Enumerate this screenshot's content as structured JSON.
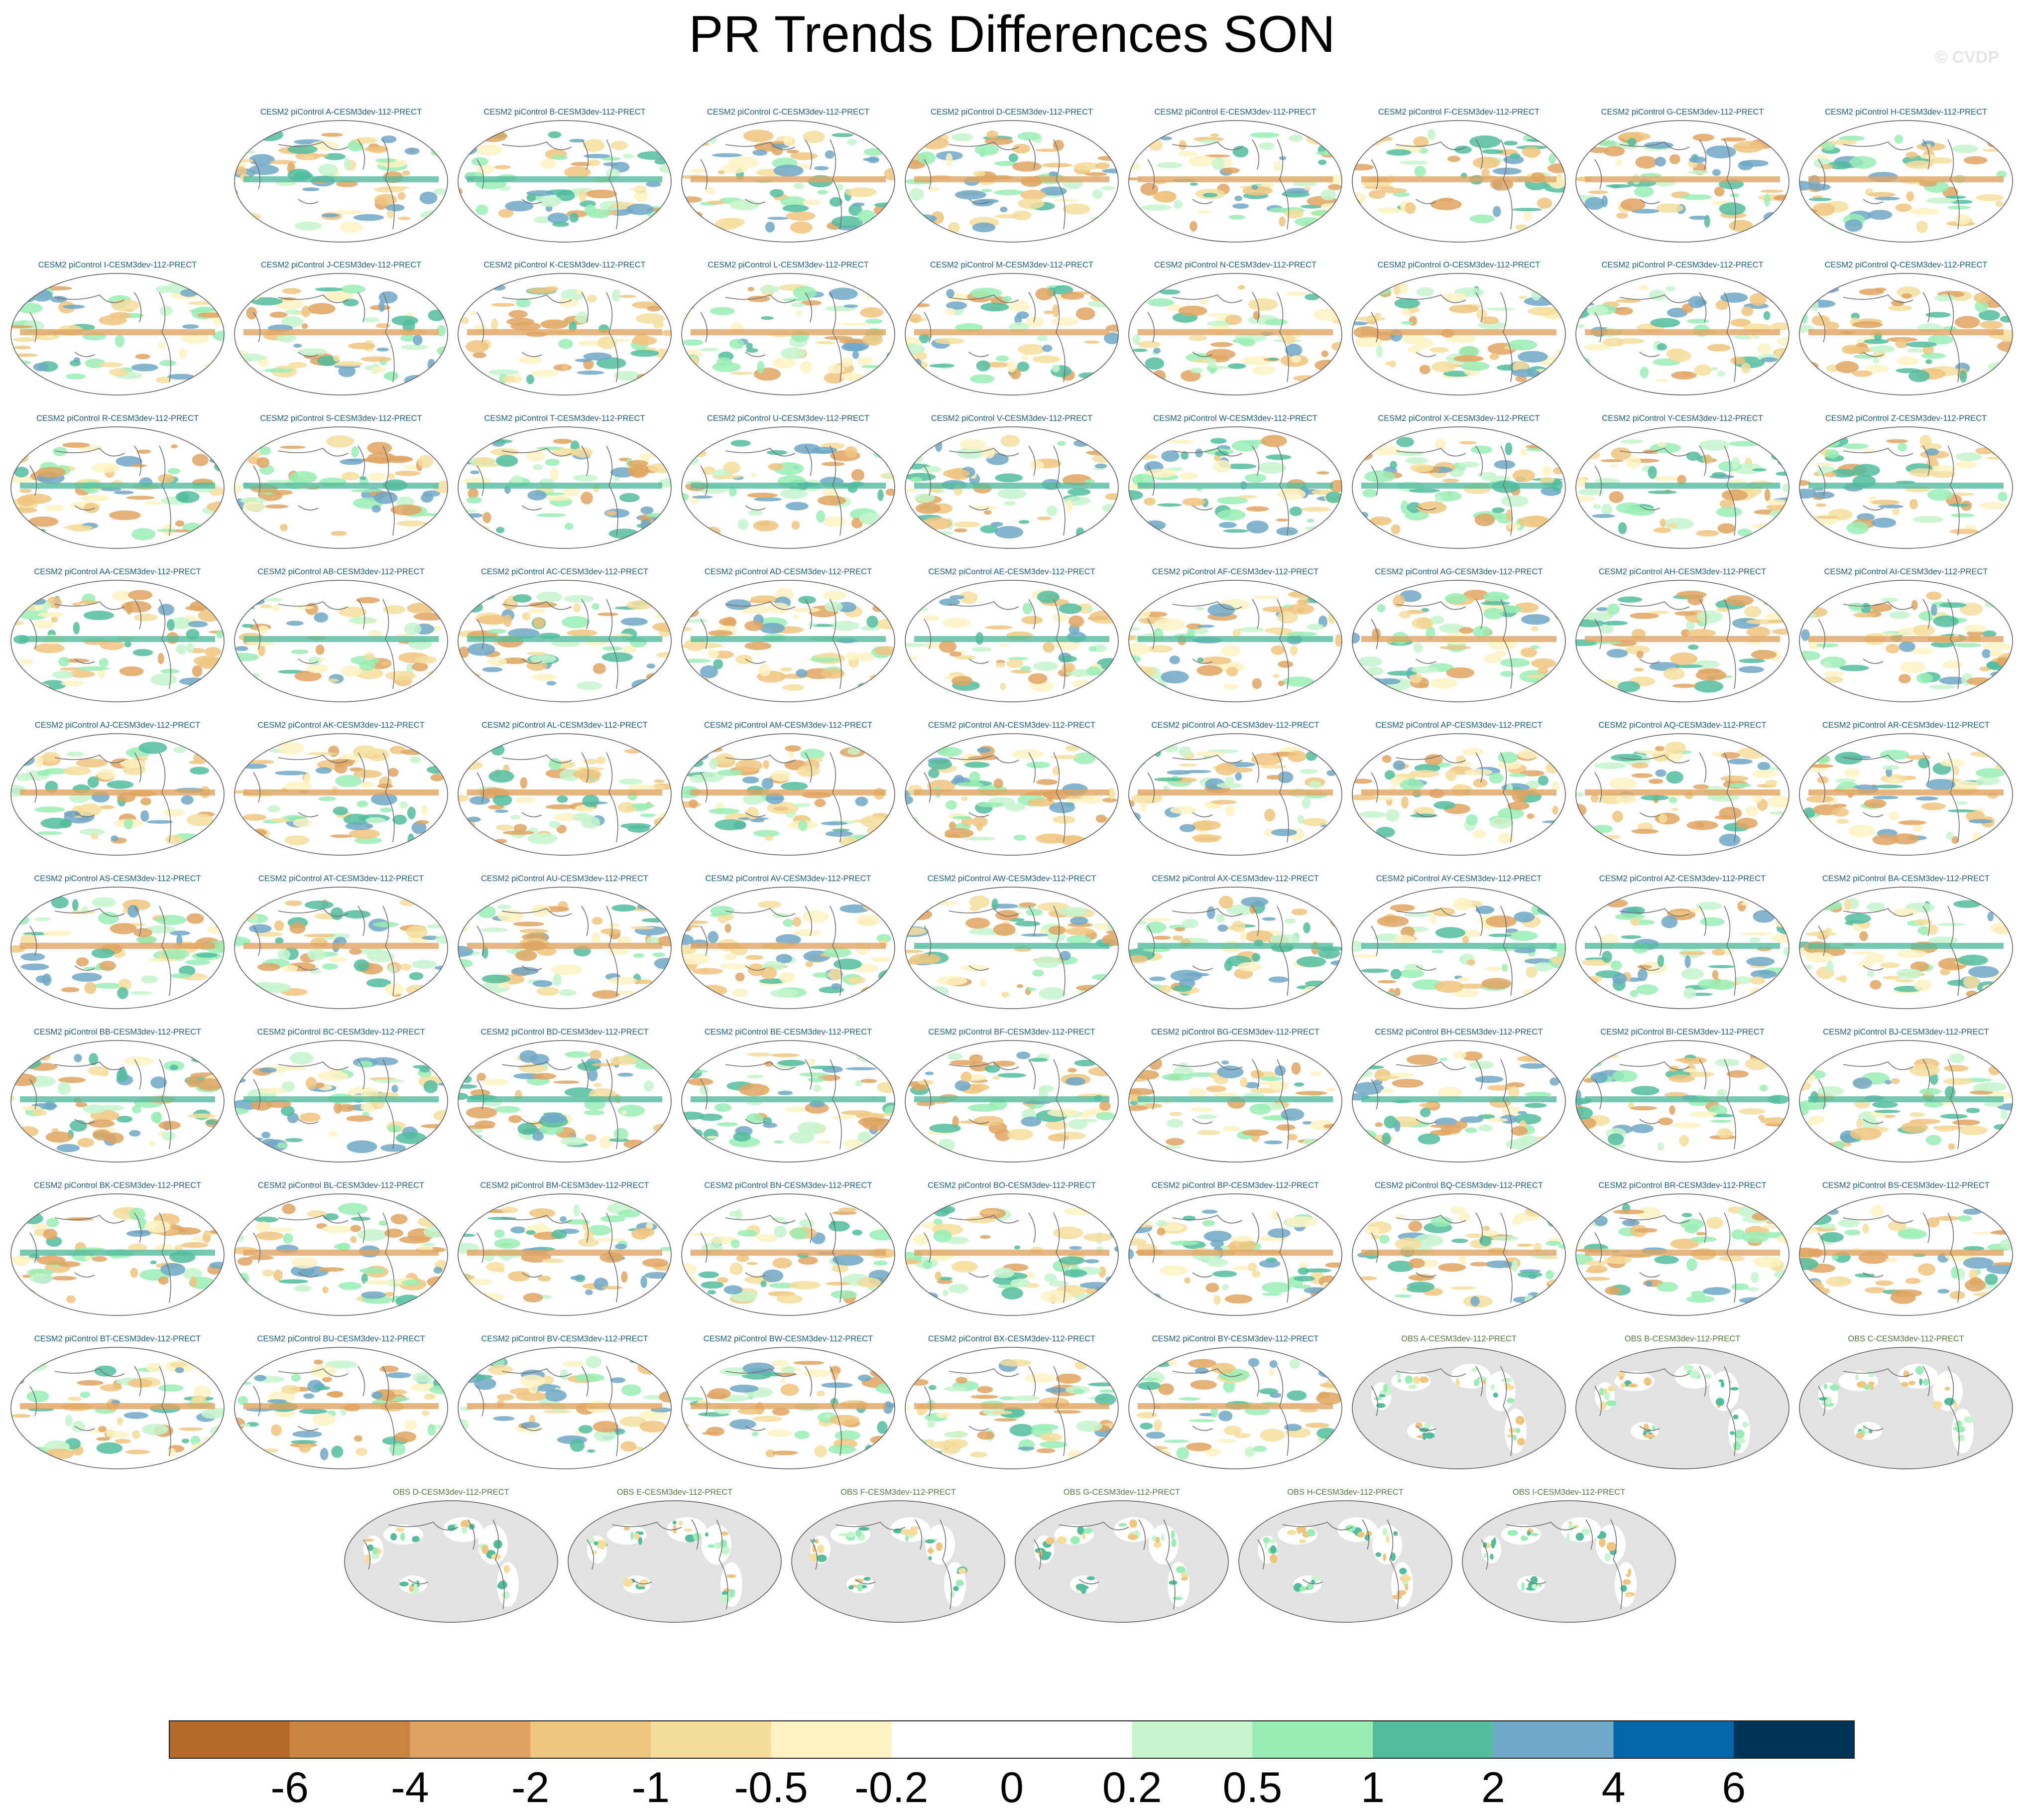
{
  "title": "PR Trends Differences SON",
  "watermark": "© CVDP",
  "colors": {
    "land_obs_mask": "#e2e2e2",
    "coastline": "#6f6f6f",
    "model_title": "#1f5f80",
    "obs_title": "#5a7a45"
  },
  "chart_data": {
    "type": "heatmap",
    "title": "PR Trends Differences SON",
    "description_kind": "grid of global map panels with shared discrete colorbar",
    "colorbar": {
      "levels": [
        "-6",
        "-4",
        "-2",
        "-1",
        "-0.5",
        "-0.2",
        "0",
        "0.2",
        "0.5",
        "1",
        "2",
        "4",
        "6"
      ],
      "colors": [
        "#b5692a",
        "#ca843f",
        "#dfa461",
        "#efc47f",
        "#f5dd9c",
        "#fdf2c2",
        "#ffffff",
        "#ffffff",
        "#c6f5cd",
        "#99edb4",
        "#52bc9d",
        "#6fa7c6",
        "#0367a8",
        "#023459"
      ],
      "placement": "bottom"
    },
    "panels": [
      {
        "title": "CESM2 piControl A-CESM3dev-112-PRECT",
        "kind": "model"
      },
      {
        "title": "CESM2 piControl B-CESM3dev-112-PRECT",
        "kind": "model"
      },
      {
        "title": "CESM2 piControl C-CESM3dev-112-PRECT",
        "kind": "model"
      },
      {
        "title": "CESM2 piControl D-CESM3dev-112-PRECT",
        "kind": "model"
      },
      {
        "title": "CESM2 piControl E-CESM3dev-112-PRECT",
        "kind": "model"
      },
      {
        "title": "CESM2 piControl F-CESM3dev-112-PRECT",
        "kind": "model"
      },
      {
        "title": "CESM2 piControl G-CESM3dev-112-PRECT",
        "kind": "model"
      },
      {
        "title": "CESM2 piControl H-CESM3dev-112-PRECT",
        "kind": "model"
      },
      {
        "title": "CESM2 piControl I-CESM3dev-112-PRECT",
        "kind": "model"
      },
      {
        "title": "CESM2 piControl J-CESM3dev-112-PRECT",
        "kind": "model"
      },
      {
        "title": "CESM2 piControl K-CESM3dev-112-PRECT",
        "kind": "model"
      },
      {
        "title": "CESM2 piControl L-CESM3dev-112-PRECT",
        "kind": "model"
      },
      {
        "title": "CESM2 piControl M-CESM3dev-112-PRECT",
        "kind": "model"
      },
      {
        "title": "CESM2 piControl N-CESM3dev-112-PRECT",
        "kind": "model"
      },
      {
        "title": "CESM2 piControl O-CESM3dev-112-PRECT",
        "kind": "model"
      },
      {
        "title": "CESM2 piControl P-CESM3dev-112-PRECT",
        "kind": "model"
      },
      {
        "title": "CESM2 piControl Q-CESM3dev-112-PRECT",
        "kind": "model"
      },
      {
        "title": "CESM2 piControl R-CESM3dev-112-PRECT",
        "kind": "model"
      },
      {
        "title": "CESM2 piControl S-CESM3dev-112-PRECT",
        "kind": "model"
      },
      {
        "title": "CESM2 piControl T-CESM3dev-112-PRECT",
        "kind": "model"
      },
      {
        "title": "CESM2 piControl U-CESM3dev-112-PRECT",
        "kind": "model"
      },
      {
        "title": "CESM2 piControl V-CESM3dev-112-PRECT",
        "kind": "model"
      },
      {
        "title": "CESM2 piControl W-CESM3dev-112-PRECT",
        "kind": "model"
      },
      {
        "title": "CESM2 piControl X-CESM3dev-112-PRECT",
        "kind": "model"
      },
      {
        "title": "CESM2 piControl Y-CESM3dev-112-PRECT",
        "kind": "model"
      },
      {
        "title": "CESM2 piControl Z-CESM3dev-112-PRECT",
        "kind": "model"
      },
      {
        "title": "CESM2 piControl AA-CESM3dev-112-PRECT",
        "kind": "model"
      },
      {
        "title": "CESM2 piControl AB-CESM3dev-112-PRECT",
        "kind": "model"
      },
      {
        "title": "CESM2 piControl AC-CESM3dev-112-PRECT",
        "kind": "model"
      },
      {
        "title": "CESM2 piControl AD-CESM3dev-112-PRECT",
        "kind": "model"
      },
      {
        "title": "CESM2 piControl AE-CESM3dev-112-PRECT",
        "kind": "model"
      },
      {
        "title": "CESM2 piControl AF-CESM3dev-112-PRECT",
        "kind": "model"
      },
      {
        "title": "CESM2 piControl AG-CESM3dev-112-PRECT",
        "kind": "model"
      },
      {
        "title": "CESM2 piControl AH-CESM3dev-112-PRECT",
        "kind": "model"
      },
      {
        "title": "CESM2 piControl AI-CESM3dev-112-PRECT",
        "kind": "model"
      },
      {
        "title": "CESM2 piControl AJ-CESM3dev-112-PRECT",
        "kind": "model"
      },
      {
        "title": "CESM2 piControl AK-CESM3dev-112-PRECT",
        "kind": "model"
      },
      {
        "title": "CESM2 piControl AL-CESM3dev-112-PRECT",
        "kind": "model"
      },
      {
        "title": "CESM2 piControl AM-CESM3dev-112-PRECT",
        "kind": "model"
      },
      {
        "title": "CESM2 piControl AN-CESM3dev-112-PRECT",
        "kind": "model"
      },
      {
        "title": "CESM2 piControl AO-CESM3dev-112-PRECT",
        "kind": "model"
      },
      {
        "title": "CESM2 piControl AP-CESM3dev-112-PRECT",
        "kind": "model"
      },
      {
        "title": "CESM2 piControl AQ-CESM3dev-112-PRECT",
        "kind": "model"
      },
      {
        "title": "CESM2 piControl AR-CESM3dev-112-PRECT",
        "kind": "model"
      },
      {
        "title": "CESM2 piControl AS-CESM3dev-112-PRECT",
        "kind": "model"
      },
      {
        "title": "CESM2 piControl AT-CESM3dev-112-PRECT",
        "kind": "model"
      },
      {
        "title": "CESM2 piControl AU-CESM3dev-112-PRECT",
        "kind": "model"
      },
      {
        "title": "CESM2 piControl AV-CESM3dev-112-PRECT",
        "kind": "model"
      },
      {
        "title": "CESM2 piControl AW-CESM3dev-112-PRECT",
        "kind": "model"
      },
      {
        "title": "CESM2 piControl AX-CESM3dev-112-PRECT",
        "kind": "model"
      },
      {
        "title": "CESM2 piControl AY-CESM3dev-112-PRECT",
        "kind": "model"
      },
      {
        "title": "CESM2 piControl AZ-CESM3dev-112-PRECT",
        "kind": "model"
      },
      {
        "title": "CESM2 piControl BA-CESM3dev-112-PRECT",
        "kind": "model"
      },
      {
        "title": "CESM2 piControl BB-CESM3dev-112-PRECT",
        "kind": "model"
      },
      {
        "title": "CESM2 piControl BC-CESM3dev-112-PRECT",
        "kind": "model"
      },
      {
        "title": "CESM2 piControl BD-CESM3dev-112-PRECT",
        "kind": "model"
      },
      {
        "title": "CESM2 piControl BE-CESM3dev-112-PRECT",
        "kind": "model"
      },
      {
        "title": "CESM2 piControl BF-CESM3dev-112-PRECT",
        "kind": "model"
      },
      {
        "title": "CESM2 piControl BG-CESM3dev-112-PRECT",
        "kind": "model"
      },
      {
        "title": "CESM2 piControl BH-CESM3dev-112-PRECT",
        "kind": "model"
      },
      {
        "title": "CESM2 piControl BI-CESM3dev-112-PRECT",
        "kind": "model"
      },
      {
        "title": "CESM2 piControl BJ-CESM3dev-112-PRECT",
        "kind": "model"
      },
      {
        "title": "CESM2 piControl BK-CESM3dev-112-PRECT",
        "kind": "model"
      },
      {
        "title": "CESM2 piControl BL-CESM3dev-112-PRECT",
        "kind": "model"
      },
      {
        "title": "CESM2 piControl BM-CESM3dev-112-PRECT",
        "kind": "model"
      },
      {
        "title": "CESM2 piControl BN-CESM3dev-112-PRECT",
        "kind": "model"
      },
      {
        "title": "CESM2 piControl BO-CESM3dev-112-PRECT",
        "kind": "model"
      },
      {
        "title": "CESM2 piControl BP-CESM3dev-112-PRECT",
        "kind": "model"
      },
      {
        "title": "CESM2 piControl BQ-CESM3dev-112-PRECT",
        "kind": "model"
      },
      {
        "title": "CESM2 piControl BR-CESM3dev-112-PRECT",
        "kind": "model"
      },
      {
        "title": "CESM2 piControl BS-CESM3dev-112-PRECT",
        "kind": "model"
      },
      {
        "title": "CESM2 piControl BT-CESM3dev-112-PRECT",
        "kind": "model"
      },
      {
        "title": "CESM2 piControl BU-CESM3dev-112-PRECT",
        "kind": "model"
      },
      {
        "title": "CESM2 piControl BV-CESM3dev-112-PRECT",
        "kind": "model"
      },
      {
        "title": "CESM2 piControl BW-CESM3dev-112-PRECT",
        "kind": "model"
      },
      {
        "title": "CESM2 piControl BX-CESM3dev-112-PRECT",
        "kind": "model"
      },
      {
        "title": "CESM2 piControl BY-CESM3dev-112-PRECT",
        "kind": "model"
      },
      {
        "title": "OBS A-CESM3dev-112-PRECT",
        "kind": "obs"
      },
      {
        "title": "OBS B-CESM3dev-112-PRECT",
        "kind": "obs"
      },
      {
        "title": "OBS C-CESM3dev-112-PRECT",
        "kind": "obs"
      },
      {
        "title": "OBS D-CESM3dev-112-PRECT",
        "kind": "obs"
      },
      {
        "title": "OBS E-CESM3dev-112-PRECT",
        "kind": "obs"
      },
      {
        "title": "OBS F-CESM3dev-112-PRECT",
        "kind": "obs"
      },
      {
        "title": "OBS G-CESM3dev-112-PRECT",
        "kind": "obs"
      },
      {
        "title": "OBS H-CESM3dev-112-PRECT",
        "kind": "obs"
      },
      {
        "title": "OBS I-CESM3dev-112-PRECT",
        "kind": "obs"
      }
    ]
  }
}
